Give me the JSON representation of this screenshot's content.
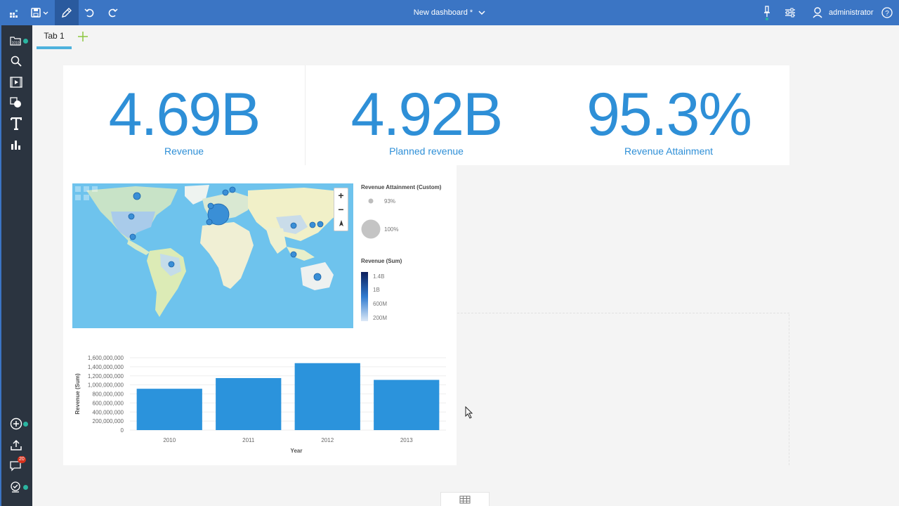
{
  "topbar": {
    "title": "New dashboard *",
    "user": "administrator"
  },
  "tabs": [
    {
      "label": "Tab 1"
    }
  ],
  "sidebar": {
    "comments_badge": "20"
  },
  "kpis": [
    {
      "value": "4.69B",
      "label": "Revenue"
    },
    {
      "value": "4.92B",
      "label": "Planned revenue"
    },
    {
      "value": "95.3%",
      "label": "Revenue Attainment"
    }
  ],
  "map_legend": {
    "size_title": "Revenue Attainment (Custom)",
    "size_min": "93%",
    "size_max": "100%",
    "color_title": "Revenue (Sum)",
    "color_ticks": [
      "1.4B",
      "1B",
      "600M",
      "200M"
    ]
  },
  "colors": {
    "accent": "#2e8fd7",
    "topbar": "#3b75c4",
    "rail": "#2b3440",
    "bar": "#2b93dc"
  },
  "chart_data": {
    "type": "bar",
    "categories": [
      "2010",
      "2011",
      "2012",
      "2013"
    ],
    "values": [
      914000000,
      1150000000,
      1480000000,
      1110000000
    ],
    "xlabel": "Year",
    "ylabel": "Revenue (Sum)",
    "ylim": [
      0,
      1600000000
    ],
    "yticks": [
      "0",
      "200,000,000",
      "400,000,000",
      "600,000,000",
      "800,000,000",
      "1,000,000,000",
      "1,200,000,000",
      "1,400,000,000",
      "1,600,000,000"
    ],
    "grid": true
  }
}
